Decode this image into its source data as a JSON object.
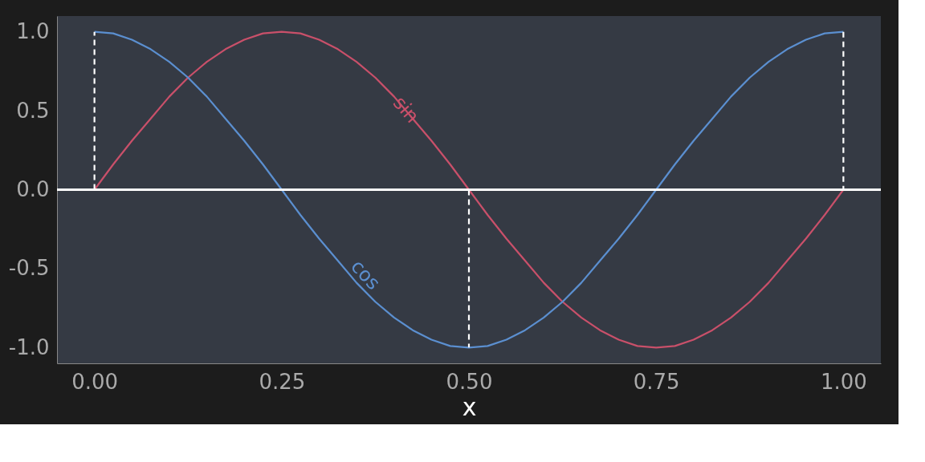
{
  "chart_data": {
    "type": "line",
    "xlabel": "x",
    "xlim": [
      -0.05,
      1.05
    ],
    "ylim": [
      -1.1,
      1.1
    ],
    "xticks": [
      {
        "value": 0,
        "label": "0.00"
      },
      {
        "value": 0.25,
        "label": "0.25"
      },
      {
        "value": 0.5,
        "label": "0.50"
      },
      {
        "value": 0.75,
        "label": "0.75"
      },
      {
        "value": 1,
        "label": "1.00"
      }
    ],
    "yticks": [
      {
        "value": -1,
        "label": "-1.0"
      },
      {
        "value": -0.5,
        "label": "-0.5"
      },
      {
        "value": 0,
        "label": "0.0"
      },
      {
        "value": 0.5,
        "label": "0.5"
      },
      {
        "value": 1,
        "label": "1.0"
      }
    ],
    "x": [
      0,
      0.025,
      0.05,
      0.075,
      0.1,
      0.125,
      0.15,
      0.175,
      0.2,
      0.225,
      0.25,
      0.275,
      0.3,
      0.325,
      0.35,
      0.375,
      0.4,
      0.425,
      0.45,
      0.475,
      0.5,
      0.525,
      0.55,
      0.575,
      0.6,
      0.625,
      0.65,
      0.675,
      0.7,
      0.725,
      0.75,
      0.775,
      0.8,
      0.825,
      0.85,
      0.875,
      0.9,
      0.925,
      0.95,
      0.975,
      1
    ],
    "series": [
      {
        "name": "sin",
        "color": "#c9506a",
        "values": [
          0,
          0.16,
          0.31,
          0.45,
          0.59,
          0.71,
          0.81,
          0.89,
          0.95,
          0.99,
          1,
          0.99,
          0.95,
          0.89,
          0.81,
          0.71,
          0.59,
          0.45,
          0.31,
          0.16,
          0,
          -0.16,
          -0.31,
          -0.45,
          -0.59,
          -0.71,
          -0.81,
          -0.89,
          -0.95,
          -0.99,
          -1,
          -0.99,
          -0.95,
          -0.89,
          -0.81,
          -0.71,
          -0.59,
          -0.45,
          -0.31,
          -0.16,
          0
        ]
      },
      {
        "name": "cos",
        "color": "#5b8fd0",
        "values": [
          1,
          0.99,
          0.95,
          0.89,
          0.81,
          0.71,
          0.59,
          0.45,
          0.31,
          0.16,
          0,
          -0.16,
          -0.31,
          -0.45,
          -0.59,
          -0.71,
          -0.81,
          -0.89,
          -0.95,
          -0.99,
          -1,
          -0.99,
          -0.95,
          -0.89,
          -0.81,
          -0.71,
          -0.59,
          -0.45,
          -0.31,
          -0.16,
          0,
          0.16,
          0.31,
          0.45,
          0.59,
          0.71,
          0.81,
          0.89,
          0.95,
          0.99,
          1
        ]
      },
      {
        "color": "#ffffff",
        "line_style": "dashed",
        "x": [
          0,
          0
        ],
        "values": [
          0,
          1
        ]
      },
      {
        "color": "#ffffff",
        "line_style": "dashed",
        "x": [
          0.5,
          0.5
        ],
        "values": [
          0,
          -1
        ]
      },
      {
        "color": "#ffffff",
        "line_style": "dashed",
        "x": [
          1,
          1
        ],
        "values": [
          1,
          0
        ]
      }
    ],
    "ref_lines": [
      {
        "axis": "y",
        "value": 0,
        "color": "#ffffff"
      }
    ]
  }
}
